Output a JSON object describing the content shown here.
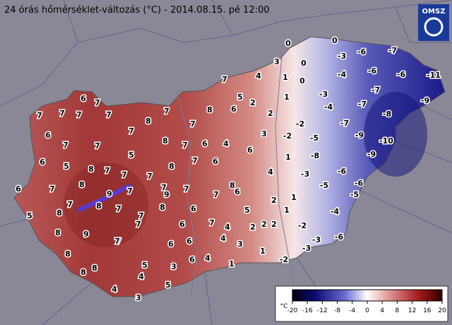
{
  "title": "24 órás hőmérséklet-változás (°C) - 2014.08.15. pé 12:00",
  "logo": "OMSZ",
  "map": {
    "labels": [
      0,
      0,
      -7,
      0,
      -3,
      -6,
      3,
      -4,
      -6,
      -6,
      -11,
      4,
      1,
      0,
      7,
      -7,
      -3,
      -9,
      5,
      1,
      -7,
      -8,
      -4,
      6,
      7,
      7,
      7,
      7,
      7,
      8,
      6,
      2,
      2,
      -2,
      -7,
      7,
      8,
      7,
      6,
      7,
      3,
      -2,
      -5,
      -9,
      -10,
      7,
      7,
      8,
      7,
      6,
      4,
      6,
      1,
      -8,
      5,
      6,
      5,
      -9,
      7,
      6,
      8,
      8,
      7,
      7,
      7,
      4,
      -3,
      -6,
      6,
      7,
      8,
      9,
      7,
      7,
      7,
      7,
      8,
      6,
      -5,
      -6,
      -5,
      9,
      2,
      1,
      7,
      8,
      7,
      8,
      7,
      6,
      5,
      1,
      2,
      -4,
      5,
      8,
      9,
      7,
      7,
      6,
      7,
      4,
      2,
      2,
      -2,
      -3,
      -6,
      8,
      7,
      6,
      6,
      4,
      3,
      1,
      -3,
      8,
      5,
      6,
      4,
      1,
      -2,
      8,
      4,
      3,
      8,
      4,
      5,
      3
    ]
  },
  "legend": {
    "unit": "°C",
    "ticks": [
      -20,
      -16,
      -12,
      -8,
      -4,
      0,
      4,
      8,
      12,
      16,
      20
    ]
  }
}
